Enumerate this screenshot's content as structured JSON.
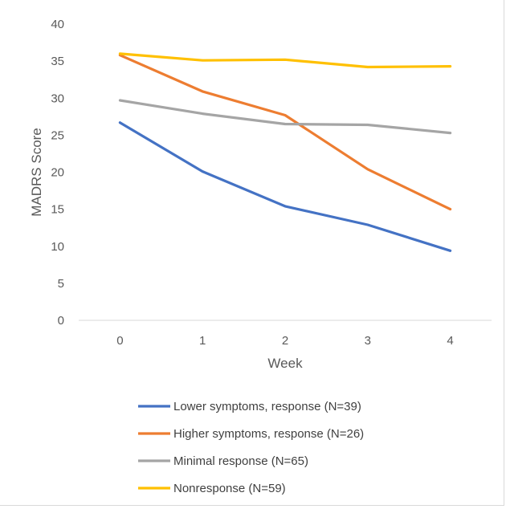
{
  "chart_data": {
    "type": "line",
    "xlabel": "Week",
    "ylabel": "MADRS Score",
    "categories": [
      "0",
      "1",
      "2",
      "3",
      "4"
    ],
    "ylim": [
      0,
      40
    ],
    "yticks": [
      0,
      5,
      10,
      15,
      20,
      25,
      30,
      35,
      40
    ],
    "grid": false,
    "legend_position": "bottom",
    "series": [
      {
        "name": "Lower symptoms, response (N=39)",
        "color": "#4472c4",
        "values": [
          26.7,
          20.1,
          15.4,
          12.9,
          9.4
        ]
      },
      {
        "name": "Higher symptoms, response (N=26)",
        "color": "#ed7d31",
        "values": [
          35.8,
          30.9,
          27.7,
          20.4,
          15.0
        ]
      },
      {
        "name": "Minimal response (N=65)",
        "color": "#a5a5a5",
        "values": [
          29.7,
          27.9,
          26.5,
          26.4,
          25.3
        ]
      },
      {
        "name": "Nonresponse (N=59)",
        "color": "#ffc000",
        "values": [
          36.0,
          35.1,
          35.2,
          34.2,
          34.3
        ]
      }
    ]
  }
}
